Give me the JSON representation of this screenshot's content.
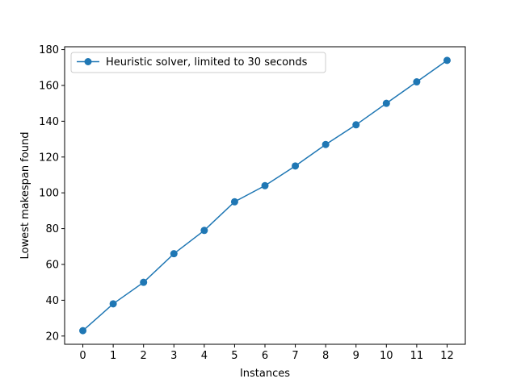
{
  "chart_data": {
    "type": "line",
    "title": "",
    "xlabel": "Instances",
    "ylabel": "Lowest makespan found",
    "xlim": [
      -0.6,
      12.6
    ],
    "ylim": [
      15.4,
      181.6
    ],
    "x_ticks": [
      0,
      1,
      2,
      3,
      4,
      5,
      6,
      7,
      8,
      9,
      10,
      11,
      12
    ],
    "y_ticks": [
      20,
      40,
      60,
      80,
      100,
      120,
      140,
      160,
      180
    ],
    "grid": false,
    "legend_position": "top-left",
    "series": [
      {
        "name": "Heuristic solver, limited to 30 seconds",
        "color": "#1f77b4",
        "marker": "circle",
        "x": [
          0,
          1,
          2,
          3,
          4,
          5,
          6,
          7,
          8,
          9,
          10,
          11,
          12
        ],
        "y": [
          23,
          38,
          50,
          66,
          79,
          95,
          104,
          115,
          127,
          138,
          150,
          162,
          174
        ]
      }
    ]
  }
}
